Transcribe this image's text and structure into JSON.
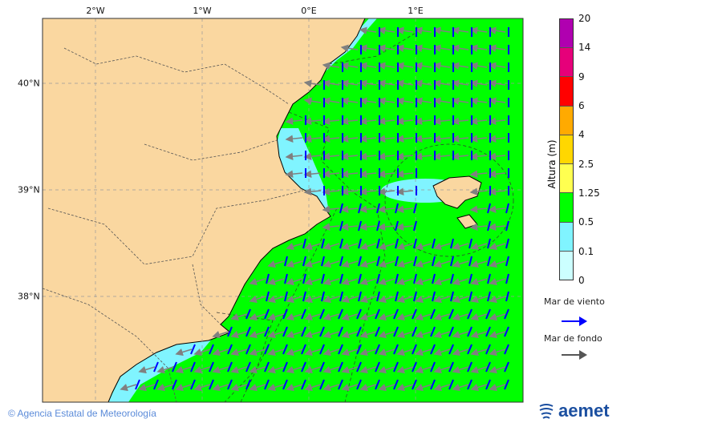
{
  "map": {
    "lon_ticks": [
      "2°W",
      "1°W",
      "0°E",
      "1°E"
    ],
    "lat_ticks": [
      "40°N",
      "39°N",
      "38°N"
    ],
    "colors": {
      "land": "#fad7a0",
      "sea_green": "#00ff00",
      "sea_lightblue": "#80f4ff",
      "wind_sea_arrow": "#0000ff",
      "swell_arrow": "#808080"
    }
  },
  "legend": {
    "title": "Altura (m)",
    "levels": [
      "20",
      "14",
      "9",
      "6",
      "4",
      "2.5",
      "1.25",
      "0.5",
      "0.1",
      "0"
    ],
    "colors": [
      "#b000b0",
      "#e6007a",
      "#ff0000",
      "#ffaa00",
      "#ffd700",
      "#ffff50",
      "#00ff00",
      "#80f4ff",
      "#ccffff"
    ],
    "wind_sea_label": "Mar de viento",
    "swell_label": "Mar de fondo"
  },
  "footer": {
    "copyright": "© Agencia Estatal de Meteorología"
  },
  "logo": {
    "text": "aemet"
  }
}
